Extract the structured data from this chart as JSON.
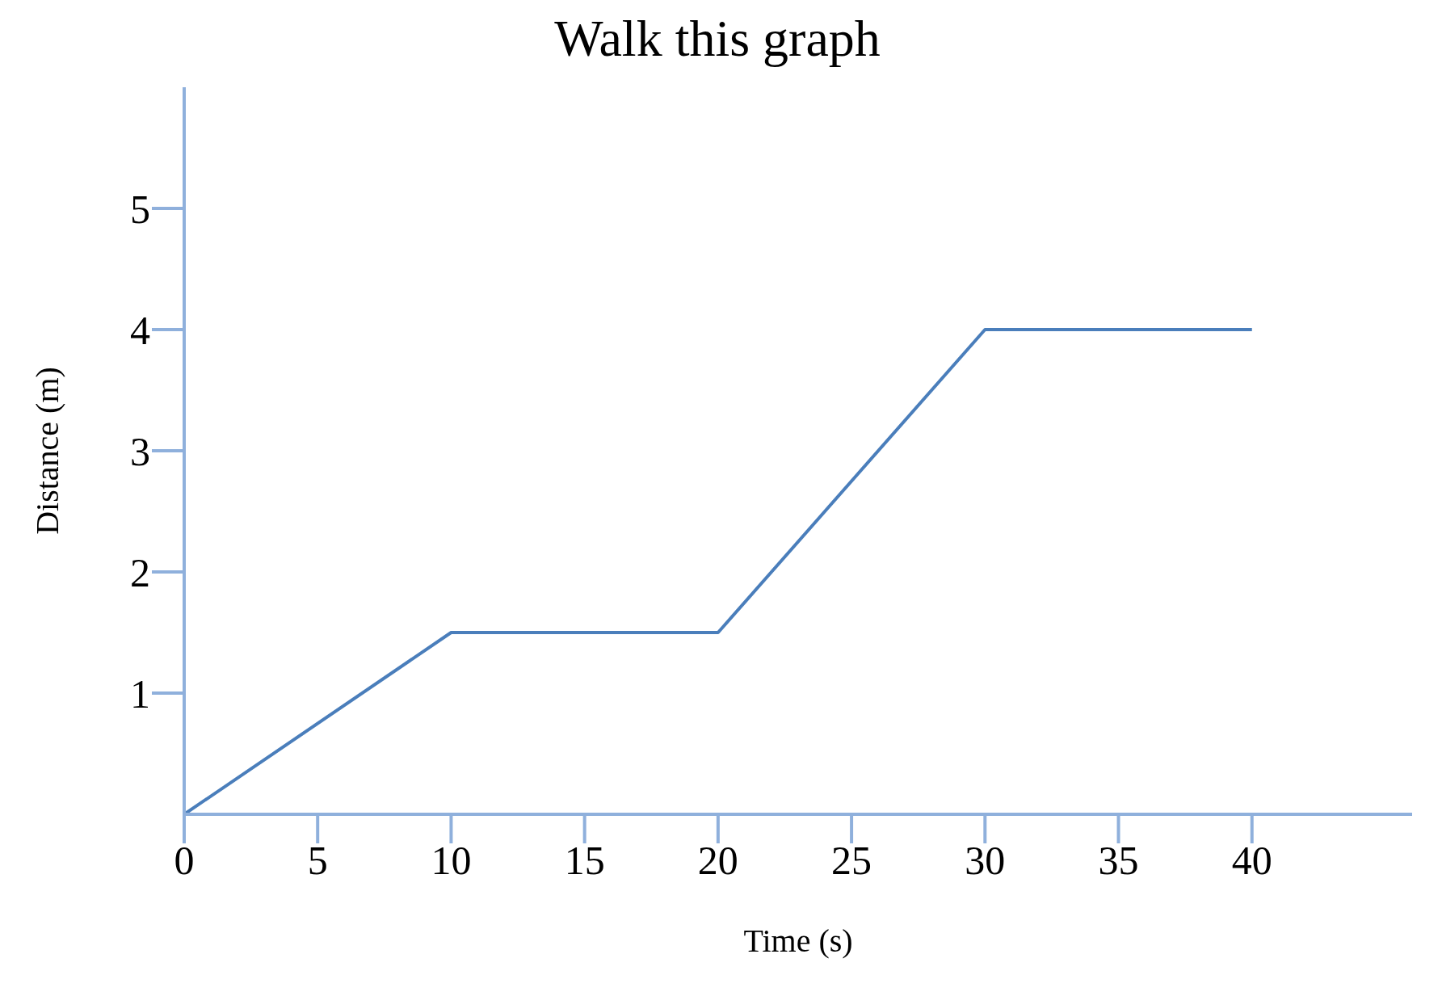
{
  "chart_data": {
    "type": "line",
    "title": "Walk this graph",
    "xlabel": "Time (s)",
    "ylabel": "Distance (m)",
    "x": [
      0,
      10,
      20,
      30,
      40
    ],
    "series": [
      {
        "color": "#4a7ebb",
        "values": [
          0,
          1.5,
          1.5,
          4,
          4
        ]
      }
    ],
    "xlim": [
      0,
      46
    ],
    "xticks": [
      0,
      5,
      10,
      15,
      20,
      25,
      30,
      35,
      40
    ],
    "ylim": [
      0,
      6
    ],
    "yticks": [
      1,
      2,
      3,
      4,
      5
    ],
    "grid": false,
    "legend": false,
    "marker": "none",
    "line_style": "solid"
  }
}
